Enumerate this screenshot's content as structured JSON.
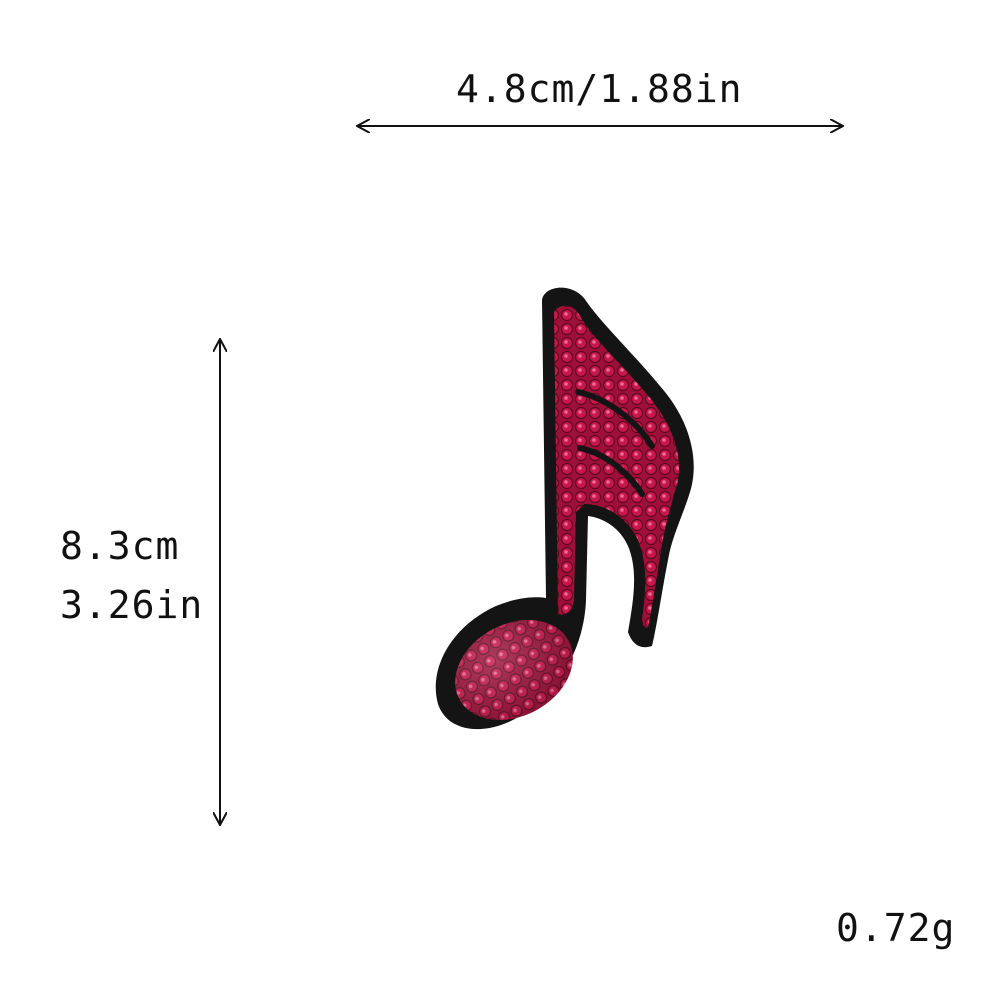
{
  "dimensions": {
    "width_label": "4.8cm/1.88in",
    "height_label_cm": "8.3cm",
    "height_label_in": "3.26in"
  },
  "weight_label": "0.72g",
  "product": {
    "icon": "eighth-note-sequin-patch-icon",
    "colors": {
      "border": "#141414",
      "sequin": "#b0143f",
      "sequin_dark": "#6e0a26",
      "sequin_light": "#e04a78"
    }
  }
}
